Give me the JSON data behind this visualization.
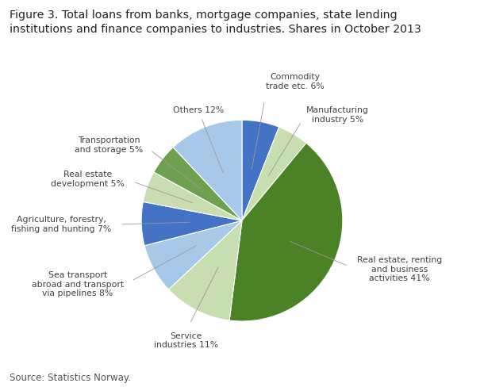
{
  "title": "Figure 3. Total loans from banks, mortgage companies, state lending\ninstitutions and finance companies to industries. Shares in October 2013",
  "source": "Source: Statistics Norway.",
  "slices": [
    {
      "label": "Commodity\ntrade etc. 6%",
      "value": 6,
      "color": "#4472C4"
    },
    {
      "label": "Manufacturing\nindustry 5%",
      "value": 5,
      "color": "#C8DDB0"
    },
    {
      "label": "Real estate, renting\nand business\nactivities 41%",
      "value": 41,
      "color": "#4C8226"
    },
    {
      "label": "Service\nindustries 11%",
      "value": 11,
      "color": "#C8DDB0"
    },
    {
      "label": "Sea transport\nabroad and transport\nvia pipelines 8%",
      "value": 8,
      "color": "#A8C8E8"
    },
    {
      "label": "Agriculture, forestry,\nfishing and hunting 7%",
      "value": 7,
      "color": "#4472C4"
    },
    {
      "label": "Real estate\ndevelopment 5%",
      "value": 5,
      "color": "#C8DDB0"
    },
    {
      "label": "Transportation\nand storage 5%",
      "value": 5,
      "color": "#6EA050"
    },
    {
      "label": "Others 12%",
      "value": 12,
      "color": "#A8C8E8"
    }
  ],
  "startangle": 90,
  "figsize": [
    6.1,
    4.88
  ],
  "dpi": 100
}
